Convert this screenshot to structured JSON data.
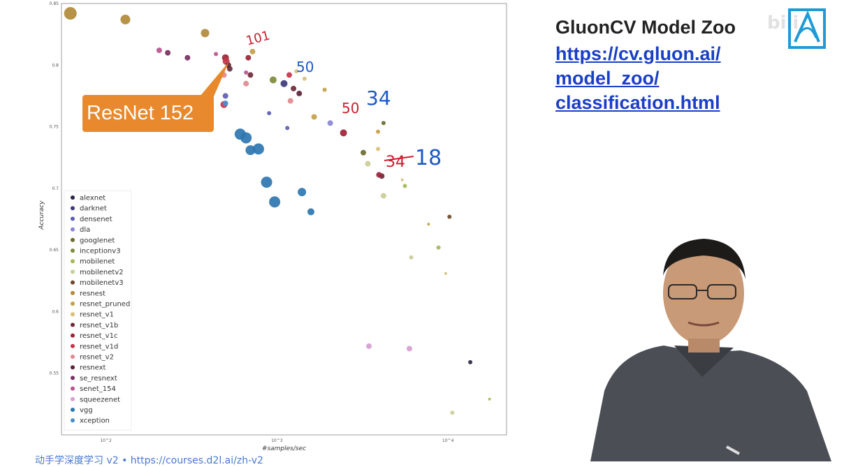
{
  "chart_data": {
    "type": "scatter",
    "xlabel": "#samples/sec",
    "ylabel": "Accuracy",
    "x_scale": "log",
    "xlim": [
      55,
      22000
    ],
    "ylim": [
      0.5,
      0.85
    ],
    "xticks": [
      {
        "value": 100,
        "label": "10^2"
      },
      {
        "value": 1000,
        "label": "10^3"
      },
      {
        "value": 10000,
        "label": "10^4"
      }
    ],
    "yticks": [
      0.55,
      0.6,
      0.65,
      0.7,
      0.75,
      0.8,
      0.85
    ],
    "grid": true,
    "legend_position": "bottom-left",
    "series": [
      {
        "name": "alexnet",
        "color": "#2b2447",
        "points": [
          [
            13500,
            0.559,
            3
          ]
        ]
      },
      {
        "name": "darknet",
        "color": "#3d3b7a",
        "points": [
          [
            1100,
            0.785,
            5
          ]
        ]
      },
      {
        "name": "densenet",
        "color": "#5c5cb0",
        "points": [
          [
            500,
            0.775,
            4
          ],
          [
            900,
            0.761,
            3
          ],
          [
            1150,
            0.749,
            3
          ]
        ]
      },
      {
        "name": "dla",
        "color": "#8a84d6",
        "points": [
          [
            2050,
            0.753,
            4
          ]
        ]
      },
      {
        "name": "googlenet",
        "color": "#6b6a2e",
        "points": [
          [
            4200,
            0.753,
            3
          ],
          [
            3200,
            0.729,
            4
          ]
        ]
      },
      {
        "name": "inceptionv3",
        "color": "#7c8c3a",
        "points": [
          [
            950,
            0.788,
            5
          ]
        ]
      },
      {
        "name": "mobilenet",
        "color": "#a6b85a",
        "points": [
          [
            5600,
            0.702,
            3
          ],
          [
            8800,
            0.652,
            3
          ],
          [
            17500,
            0.529,
            2
          ]
        ]
      },
      {
        "name": "mobilenetv2",
        "color": "#c9cd98",
        "points": [
          [
            3400,
            0.72,
            4
          ],
          [
            4200,
            0.694,
            4
          ],
          [
            6100,
            0.644,
            3
          ],
          [
            10600,
            0.518,
            3
          ]
        ]
      },
      {
        "name": "mobilenetv3",
        "color": "#6e4a2a",
        "points": [
          [
            10200,
            0.677,
            3
          ]
        ]
      },
      {
        "name": "resnest",
        "color": "#b08a3a",
        "points": [
          [
            62,
            0.842,
            9
          ],
          [
            130,
            0.837,
            7
          ],
          [
            380,
            0.826,
            6
          ]
        ]
      },
      {
        "name": "resnet_pruned",
        "color": "#c4a04a",
        "points": [
          [
            720,
            0.811,
            4
          ],
          [
            1650,
            0.758,
            4
          ],
          [
            1900,
            0.78,
            3
          ],
          [
            3900,
            0.746,
            3
          ],
          [
            7700,
            0.671,
            2
          ]
        ]
      },
      {
        "name": "resnet_v1",
        "color": "#d8c07a",
        "points": [
          [
            1300,
            0.795,
            3
          ],
          [
            1450,
            0.789,
            3
          ],
          [
            3900,
            0.732,
            3
          ],
          [
            5400,
            0.707,
            2
          ],
          [
            9700,
            0.631,
            2
          ]
        ]
      },
      {
        "name": "resnet_v1b",
        "color": "#6e2a3a",
        "points": [
          [
            530,
            0.797,
            4
          ],
          [
            700,
            0.792,
            4
          ],
          [
            1250,
            0.781,
            4
          ],
          [
            4100,
            0.71,
            4
          ]
        ]
      },
      {
        "name": "resnet_v1c",
        "color": "#9c2436",
        "points": [
          [
            500,
            0.806,
            5
          ],
          [
            680,
            0.806,
            4
          ],
          [
            2450,
            0.745,
            5
          ],
          [
            3950,
            0.711,
            4
          ]
        ]
      },
      {
        "name": "resnet_v1d",
        "color": "#c4344a",
        "points": [
          [
            505,
            0.803,
            5
          ],
          [
            490,
            0.768,
            5
          ],
          [
            1180,
            0.792,
            4
          ]
        ]
      },
      {
        "name": "resnet_v2",
        "color": "#e2898e",
        "points": [
          [
            490,
            0.792,
            4
          ],
          [
            660,
            0.785,
            4
          ],
          [
            1200,
            0.771,
            4
          ]
        ]
      },
      {
        "name": "resnext",
        "color": "#5a2436",
        "points": [
          [
            520,
            0.8,
            4
          ],
          [
            1350,
            0.777,
            4
          ]
        ]
      },
      {
        "name": "se_resnext",
        "color": "#7a3060",
        "points": [
          [
            230,
            0.81,
            4
          ],
          [
            300,
            0.806,
            4
          ]
        ]
      },
      {
        "name": "senet_154",
        "color": "#b85490",
        "points": [
          [
            205,
            0.812,
            4
          ],
          [
            440,
            0.809,
            3
          ],
          [
            660,
            0.794,
            3
          ]
        ]
      },
      {
        "name": "squeezenet",
        "color": "#d79ed0",
        "points": [
          [
            3450,
            0.572,
            4
          ],
          [
            5950,
            0.57,
            4
          ]
        ]
      },
      {
        "name": "vgg",
        "color": "#2d76b0",
        "points": [
          [
            610,
            0.744,
            8
          ],
          [
            660,
            0.741,
            8
          ],
          [
            700,
            0.731,
            7
          ],
          [
            780,
            0.732,
            8
          ],
          [
            870,
            0.705,
            8
          ],
          [
            970,
            0.689,
            8
          ],
          [
            1400,
            0.697,
            6
          ],
          [
            1580,
            0.681,
            5
          ]
        ]
      },
      {
        "name": "xception",
        "color": "#4a90c8",
        "points": [
          [
            500,
            0.769,
            4
          ]
        ]
      }
    ],
    "annotations": [
      "ResNet 152",
      "101",
      "50",
      "34",
      "18"
    ]
  },
  "right_panel": {
    "heading": "GluonCV Model Zoo",
    "link_lines": [
      "https://cv.gluon.ai/",
      "model_zoo/",
      "classification.html"
    ],
    "watermark": "bili"
  },
  "footer": {
    "text": "动手学深度学习 v2 • https://courses.d2l.ai/zh-v2"
  }
}
